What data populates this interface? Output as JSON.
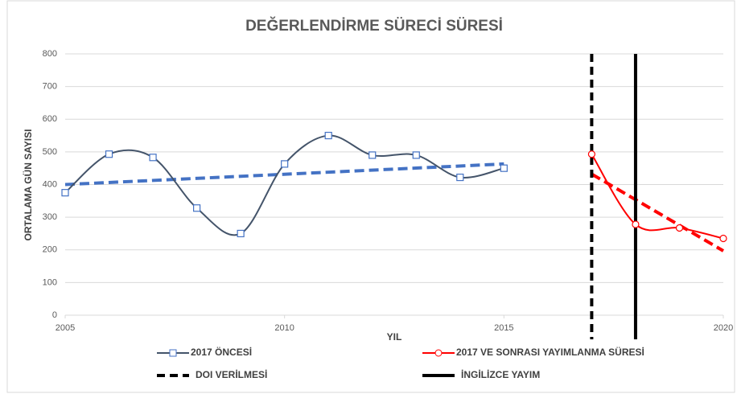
{
  "chart_data": {
    "type": "line",
    "title": "DEĞERLENDİRME SÜRECİ SÜRESİ",
    "xlabel": "YIL",
    "ylabel": "ORTALAMA GÜN SAYISI",
    "xlim": [
      2005,
      2020
    ],
    "xticks": [
      2005,
      2010,
      2015,
      2020
    ],
    "ylim": [
      0,
      800
    ],
    "yticks": [
      0,
      100,
      200,
      300,
      400,
      500,
      600,
      700,
      800
    ],
    "grid": true,
    "smooth": true,
    "series": [
      {
        "name": "2017 ÖNCESİ",
        "color": "#44546a",
        "marker": "square",
        "marker_color": "#4472c4",
        "x": [
          2005,
          2006,
          2007,
          2008,
          2009,
          2010,
          2011,
          2012,
          2013,
          2014,
          2015
        ],
        "values": [
          375,
          493,
          483,
          328,
          250,
          463,
          550,
          490,
          490,
          422,
          450
        ]
      },
      {
        "name": "2017 VE SONRASI YAYIMLANMA SÜRESİ",
        "color": "#ff0000",
        "marker": "circle",
        "marker_color": "#ff0000",
        "x": [
          2017,
          2018,
          2019,
          2020
        ],
        "values": [
          493,
          278,
          267,
          235
        ]
      }
    ],
    "trendlines": [
      {
        "color": "#4472c4",
        "x": [
          2005,
          2015
        ],
        "values": [
          400,
          463
        ]
      },
      {
        "color": "#ff0000",
        "x": [
          2017,
          2020
        ],
        "values": [
          432,
          197
        ]
      }
    ],
    "vlines": [
      {
        "name": "DOI VERİLMESİ",
        "x": 2017,
        "color": "#000000",
        "dashed": true
      },
      {
        "name": "İNGİLİZCE YAYIM",
        "x": 2018,
        "color": "#000000",
        "dashed": false
      }
    ]
  }
}
